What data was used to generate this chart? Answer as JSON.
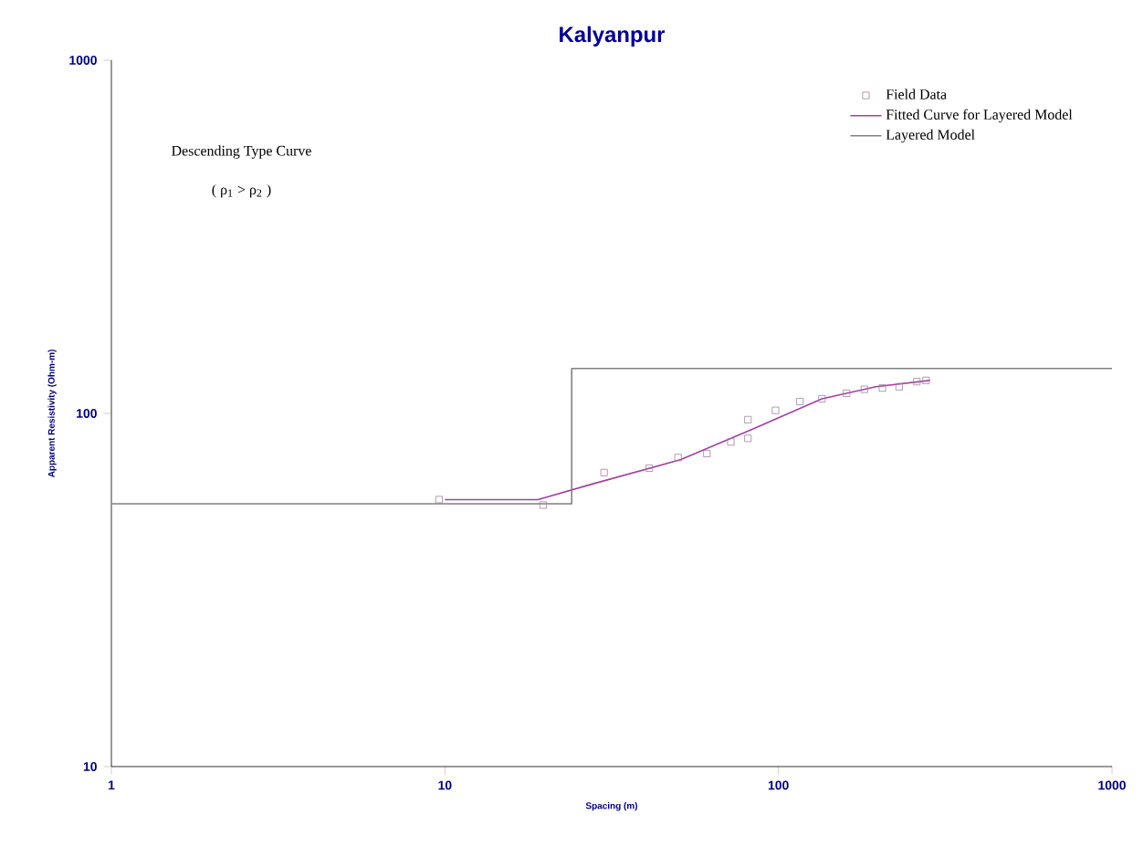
{
  "chart_data": {
    "type": "line",
    "title": "Kalyanpur",
    "xlabel": "Spacing (m)",
    "ylabel": "Apparent Resistivity (Ohm-m)",
    "log": "xy",
    "xlim": [
      1,
      1000
    ],
    "ylim": [
      10,
      1000
    ],
    "xticks": [
      1,
      10,
      100,
      1000
    ],
    "yticks": [
      10,
      100,
      1000
    ],
    "legend": "top right",
    "annotations": [
      "Descending Type Curve",
      "( ρ$_{1}$ > ρ$_{2}$ )"
    ],
    "series": [
      {
        "name": "Field Data",
        "type": "scatter",
        "marker": "square",
        "color": "#a080a0",
        "x": [
          9.6,
          19.7,
          30,
          41,
          50,
          61,
          72,
          81,
          81,
          98,
          116,
          135,
          160,
          181,
          205,
          230,
          260,
          277
        ],
        "values": [
          57,
          55,
          68,
          70,
          75,
          77,
          83,
          85,
          96,
          102,
          108,
          110,
          114,
          117,
          118,
          119,
          123,
          124
        ]
      },
      {
        "name": "Fitted Curve for Layered Model",
        "marker": "none",
        "color": "#a040a0",
        "x": [
          10,
          19,
          27.5,
          51,
          83,
          135,
          196,
          285
        ],
        "values": [
          57,
          57,
          63,
          74,
          90,
          110,
          119,
          124
        ]
      },
      {
        "name": "Layered Model",
        "marker": "none",
        "color": "#808080",
        "x": [
          1,
          24,
          24,
          1000
        ],
        "values": [
          55.5,
          55.5,
          134,
          134
        ]
      }
    ]
  }
}
